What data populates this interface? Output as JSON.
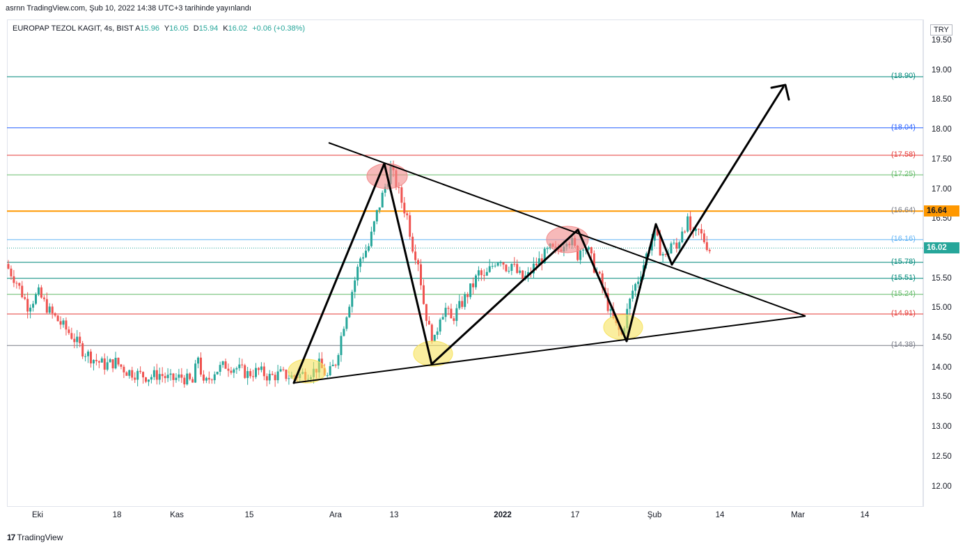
{
  "header": {
    "publish_text": "asrnn TradingView.com, Şub 10, 2022 14:38 UTC+3 tarihinde yayınlandı"
  },
  "legend": {
    "symbol": "EUROPAP TEZOL KAGIT, 4s, BIST",
    "open_label": "A",
    "open": "15.96",
    "high_label": "Y",
    "high": "16.05",
    "low_label": "D",
    "low": "15.94",
    "close_label": "K",
    "close": "16.02",
    "change": "+0.06 (+0.38%)"
  },
  "currency": "TRY",
  "current_price": "16.02",
  "orange_level": "16.64",
  "colors": {
    "up": "#26a69a",
    "down": "#ef5350",
    "orange": "#ff9800",
    "teal": "#00897b",
    "blue": "#2962ff",
    "red": "#e53935",
    "green": "#66bb6a",
    "lightblue": "#64b5f6",
    "gray": "#787b86"
  },
  "chart_data": {
    "type": "candlestick",
    "symbol": "EUROPAP TEZOL KAGIT",
    "timeframe": "4s",
    "ylim": [
      11.75,
      19.75
    ],
    "y_ticks": [
      "19.50",
      "19.00",
      "18.50",
      "18.00",
      "17.50",
      "17.00",
      "16.50",
      "16.00",
      "15.50",
      "15.00",
      "14.50",
      "14.00",
      "13.50",
      "13.00",
      "12.50",
      "12.00"
    ],
    "x_ticks": [
      {
        "label": "Eki",
        "bold": false
      },
      {
        "label": "18",
        "bold": false
      },
      {
        "label": "Kas",
        "bold": false
      },
      {
        "label": "15",
        "bold": false
      },
      {
        "label": "Ara",
        "bold": false
      },
      {
        "label": "13",
        "bold": false
      },
      {
        "label": "2022",
        "bold": true
      },
      {
        "label": "17",
        "bold": false
      },
      {
        "label": "Şub",
        "bold": false
      },
      {
        "label": "14",
        "bold": false
      },
      {
        "label": "Mar",
        "bold": false
      },
      {
        "label": "14",
        "bold": false
      }
    ],
    "fib_levels": [
      {
        "label": "(18.90)",
        "value": 18.9,
        "color": "teal"
      },
      {
        "label": "(18.04)",
        "value": 18.04,
        "color": "blue"
      },
      {
        "label": "(17.58)",
        "value": 17.58,
        "color": "red"
      },
      {
        "label": "(17.25)",
        "value": 17.25,
        "color": "green"
      },
      {
        "label": "(16.64)",
        "value": 16.64,
        "color": "gray"
      },
      {
        "label": "(16.16)",
        "value": 16.16,
        "color": "lightblue"
      },
      {
        "label": "(15.78)",
        "value": 15.78,
        "color": "teal"
      },
      {
        "label": "(15.51)",
        "value": 15.51,
        "color": "teal"
      },
      {
        "label": "(15.24)",
        "value": 15.24,
        "color": "green"
      },
      {
        "label": "(14.91)",
        "value": 14.91,
        "color": "red"
      },
      {
        "label": "(14.38)",
        "value": 14.38,
        "color": "gray"
      }
    ],
    "price_path": [
      [
        0,
        15.75
      ],
      [
        4,
        15.45
      ],
      [
        8,
        15.05
      ],
      [
        12,
        15.25
      ],
      [
        16,
        14.95
      ],
      [
        20,
        14.75
      ],
      [
        24,
        14.55
      ],
      [
        28,
        14.3
      ],
      [
        32,
        14.15
      ],
      [
        36,
        14.05
      ],
      [
        40,
        14.1
      ],
      [
        44,
        13.95
      ],
      [
        48,
        13.9
      ],
      [
        52,
        13.85
      ],
      [
        56,
        13.9
      ],
      [
        60,
        13.8
      ],
      [
        64,
        13.85
      ],
      [
        68,
        13.75
      ],
      [
        70,
        14.2
      ],
      [
        72,
        13.7
      ],
      [
        76,
        13.95
      ],
      [
        80,
        14.05
      ],
      [
        84,
        14.0
      ],
      [
        88,
        13.9
      ],
      [
        92,
        13.95
      ],
      [
        96,
        13.85
      ],
      [
        100,
        13.9
      ],
      [
        104,
        13.85
      ],
      [
        108,
        13.9
      ],
      [
        112,
        13.95
      ],
      [
        114,
        14.05
      ],
      [
        117,
        13.85
      ],
      [
        120,
        14.1
      ],
      [
        123,
        14.75
      ],
      [
        126,
        15.3
      ],
      [
        129,
        15.85
      ],
      [
        132,
        16.05
      ],
      [
        135,
        16.6
      ],
      [
        138,
        17.05
      ],
      [
        140,
        17.35
      ],
      [
        142,
        17.1
      ],
      [
        144,
        16.8
      ],
      [
        146,
        16.55
      ],
      [
        148,
        16.05
      ],
      [
        150,
        15.8
      ],
      [
        152,
        15.1
      ],
      [
        154,
        14.65
      ],
      [
        156,
        14.45
      ],
      [
        158,
        14.9
      ],
      [
        160,
        15.0
      ],
      [
        162,
        14.8
      ],
      [
        164,
        14.95
      ],
      [
        166,
        15.1
      ],
      [
        168,
        15.25
      ],
      [
        170,
        15.4
      ],
      [
        172,
        15.6
      ],
      [
        174,
        15.5
      ],
      [
        176,
        15.65
      ],
      [
        178,
        15.8
      ],
      [
        180,
        15.85
      ],
      [
        182,
        15.7
      ],
      [
        184,
        15.75
      ],
      [
        186,
        15.6
      ],
      [
        188,
        15.5
      ],
      [
        190,
        15.55
      ],
      [
        192,
        15.7
      ],
      [
        194,
        15.8
      ],
      [
        196,
        15.9
      ],
      [
        198,
        16.0
      ],
      [
        200,
        15.95
      ],
      [
        202,
        16.05
      ],
      [
        204,
        16.2
      ],
      [
        206,
        16.1
      ],
      [
        208,
        15.9
      ],
      [
        210,
        16.1
      ],
      [
        212,
        15.95
      ],
      [
        214,
        15.7
      ],
      [
        216,
        15.5
      ],
      [
        218,
        15.2
      ],
      [
        220,
        14.9
      ],
      [
        222,
        14.7
      ],
      [
        224,
        14.55
      ],
      [
        226,
        14.95
      ],
      [
        228,
        15.3
      ],
      [
        230,
        15.5
      ],
      [
        232,
        15.75
      ],
      [
        234,
        16.05
      ],
      [
        236,
        16.25
      ],
      [
        238,
        16.0
      ],
      [
        240,
        15.85
      ],
      [
        242,
        16.1
      ],
      [
        244,
        16.0
      ],
      [
        246,
        16.35
      ],
      [
        248,
        16.45
      ],
      [
        250,
        16.2
      ],
      [
        252,
        16.3
      ],
      [
        254,
        16.15
      ],
      [
        256,
        16.0
      ]
    ],
    "annotations": {
      "wave_lines": [
        [
          [
            422,
            550
          ],
          [
            552,
            235
          ]
        ],
        [
          [
            552,
            235
          ],
          [
            620,
            523
          ]
        ],
        [
          [
            620,
            523
          ],
          [
            830,
            330
          ]
        ],
        [
          [
            830,
            330
          ],
          [
            900,
            490
          ]
        ],
        [
          [
            900,
            490
          ],
          [
            942,
            322
          ]
        ],
        [
          [
            942,
            322
          ],
          [
            965,
            380
          ]
        ],
        [
          [
            965,
            380
          ],
          [
            1125,
            125
          ]
        ]
      ],
      "arrow_head": [
        [
          1108,
          126
        ],
        [
          1128,
          122
        ],
        [
          1133,
          143
        ]
      ],
      "trend_lines": [
        [
          [
            472,
            205
          ],
          [
            1157,
            454
          ]
        ],
        [
          [
            422,
            550
          ],
          [
            1157,
            454
          ]
        ]
      ],
      "ellipses": [
        {
          "cx": 441,
          "cy": 533,
          "rx": 27,
          "ry": 17,
          "color": "#f7e35f"
        },
        {
          "cx": 622,
          "cy": 508,
          "rx": 28,
          "ry": 18,
          "color": "#f7e35f"
        },
        {
          "cx": 895,
          "cy": 470,
          "rx": 28,
          "ry": 18,
          "color": "#f7e35f"
        },
        {
          "cx": 556,
          "cy": 253,
          "rx": 29,
          "ry": 18,
          "color": "#f28b8b"
        },
        {
          "cx": 815,
          "cy": 344,
          "rx": 30,
          "ry": 19,
          "color": "#f28b8b"
        }
      ]
    }
  },
  "footer": {
    "logo_mark": "17",
    "logo_text": "TradingView"
  }
}
